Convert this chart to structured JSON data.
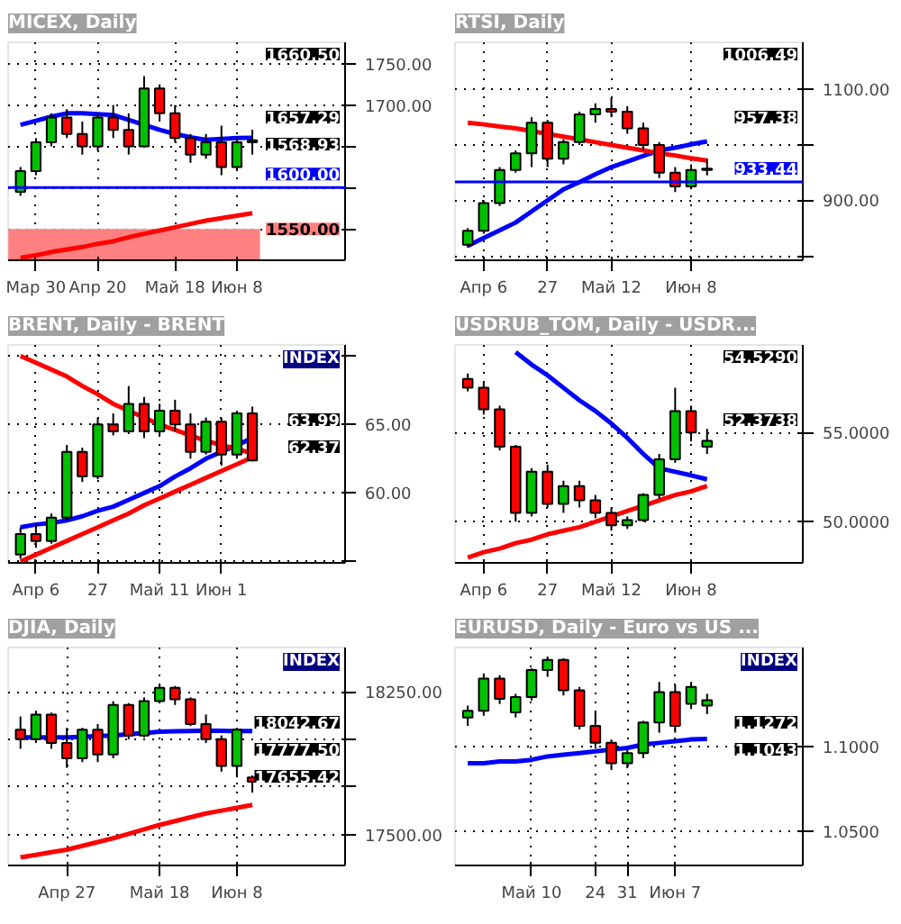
{
  "chart_data": [
    {
      "type": "candlestick",
      "title": "MICEX, Daily",
      "categories": [
        null,
        "Мар 30",
        null,
        null,
        null,
        "Апр 20",
        null,
        null,
        null,
        null,
        "Май 18",
        null,
        null,
        null,
        "Июн 8",
        null
      ],
      "ylim": [
        1512,
        1776
      ],
      "ohlc": [
        [
          1595,
          1625,
          1590,
          1620
        ],
        [
          1620,
          1660,
          1615,
          1655
        ],
        [
          1655,
          1690,
          1650,
          1685
        ],
        [
          1685,
          1695,
          1660,
          1665
        ],
        [
          1665,
          1680,
          1640,
          1650
        ],
        [
          1650,
          1690,
          1645,
          1685
        ],
        [
          1685,
          1700,
          1660,
          1670
        ],
        [
          1670,
          1690,
          1640,
          1650
        ],
        [
          1650,
          1735,
          1650,
          1720
        ],
        [
          1720,
          1725,
          1680,
          1690
        ],
        [
          1690,
          1700,
          1655,
          1660
        ],
        [
          1660,
          1665,
          1630,
          1640
        ],
        [
          1640,
          1665,
          1635,
          1655
        ],
        [
          1655,
          1675,
          1615,
          1625
        ],
        [
          1625,
          1660,
          1620,
          1655
        ],
        [
          1655,
          1670,
          1640,
          1657.29
        ]
      ],
      "series": [
        {
          "type": "line",
          "color": "#0000ff",
          "values": [
            1676,
            1681,
            1686,
            1690,
            1690,
            1689,
            1688,
            1682,
            1676,
            1670,
            1665,
            1661,
            1658,
            1659,
            1660,
            1660.5
          ]
        },
        {
          "type": "line",
          "color": "#ff0000",
          "values": [
            1515,
            1518,
            1522,
            1525,
            1528,
            1532,
            1535,
            1540,
            1544,
            1548,
            1552,
            1556,
            1560,
            1563,
            1566,
            1568.93
          ]
        }
      ],
      "ref_lines": [
        {
          "axis": "y",
          "value": 1600,
          "label": "1600.00",
          "color": "#0000ff"
        }
      ],
      "bands": [
        {
          "axis": "y",
          "from": 1512,
          "to": 1550,
          "label": "1550.00",
          "color": "#ff8080"
        }
      ],
      "annotations": [
        "1660.50",
        "1657.29",
        "1568.93"
      ],
      "yticks": [
        {
          "value": 1550,
          "label": null
        },
        {
          "value": 1600,
          "label": null
        },
        {
          "value": 1650,
          "label": null
        },
        {
          "value": 1700,
          "label": "1700.00"
        },
        {
          "value": 1750,
          "label": "1750.00"
        }
      ],
      "grid": true
    },
    {
      "type": "candlestick",
      "title": "RTSI, Daily",
      "categories": [
        null,
        "Апр 6",
        null,
        null,
        null,
        "27",
        null,
        null,
        null,
        "Май 12",
        null,
        null,
        null,
        null,
        "Июн 8",
        null
      ],
      "ylim": [
        792,
        1185
      ],
      "ohlc": [
        [
          820,
          850,
          815,
          845
        ],
        [
          845,
          900,
          840,
          895
        ],
        [
          895,
          960,
          890,
          955
        ],
        [
          955,
          990,
          950,
          985
        ],
        [
          985,
          1050,
          960,
          1040
        ],
        [
          1040,
          1045,
          960,
          975
        ],
        [
          975,
          1010,
          965,
          1005
        ],
        [
          1005,
          1060,
          1000,
          1055
        ],
        [
          1055,
          1075,
          1040,
          1065
        ],
        [
          1065,
          1085,
          1050,
          1060
        ],
        [
          1060,
          1070,
          1020,
          1030
        ],
        [
          1030,
          1040,
          990,
          1000
        ],
        [
          1000,
          1005,
          940,
          950
        ],
        [
          950,
          960,
          915,
          925
        ],
        [
          925,
          965,
          920,
          955
        ],
        [
          955,
          975,
          945,
          957.38
        ]
      ],
      "series": [
        {
          "type": "line",
          "color": "#0000ff",
          "values": [
            818,
            832,
            846,
            860,
            880,
            900,
            920,
            933,
            947,
            960,
            970,
            980,
            990,
            995,
            1001,
            1006.49
          ]
        },
        {
          "type": "line",
          "color": "#ff0000",
          "values": [
            1040,
            1037,
            1033,
            1030,
            1025,
            1020,
            1015,
            1010,
            1005,
            1000,
            995,
            990,
            985,
            981,
            976,
            972
          ]
        }
      ],
      "ref_lines": [
        {
          "axis": "y",
          "value": 933.44,
          "label": "933.44",
          "color": "#0000ff"
        }
      ],
      "annotations": [
        "1006.49",
        "957.38"
      ],
      "yticks": [
        {
          "value": 800,
          "label": null
        },
        {
          "value": 900,
          "label": "900.00"
        },
        {
          "value": 1000,
          "label": null
        },
        {
          "value": 1100,
          "label": "1100.00"
        }
      ],
      "grid": true
    },
    {
      "type": "candlestick",
      "title": "BRENT, Daily - BRENT",
      "categories": [
        null,
        "Апр 6",
        null,
        null,
        null,
        "27",
        null,
        null,
        null,
        "Май 11",
        null,
        null,
        null,
        "Июн 1",
        null,
        null
      ],
      "ylim": [
        54.9,
        70.8
      ],
      "ohlc": [
        [
          55.5,
          57.5,
          55.2,
          57.0
        ],
        [
          57.0,
          57.8,
          56.0,
          56.5
        ],
        [
          56.5,
          58.5,
          56.3,
          58.2
        ],
        [
          58.2,
          63.5,
          58.0,
          63.0
        ],
        [
          63.0,
          63.3,
          60.8,
          61.2
        ],
        [
          61.2,
          65.5,
          61.0,
          65.0
        ],
        [
          65.0,
          65.8,
          64.2,
          64.5
        ],
        [
          64.5,
          67.8,
          64.3,
          66.5
        ],
        [
          66.5,
          67.0,
          64.0,
          64.5
        ],
        [
          64.5,
          66.5,
          64.2,
          66.0
        ],
        [
          66.0,
          66.8,
          64.5,
          65.0
        ],
        [
          65.0,
          65.8,
          62.5,
          63.0
        ],
        [
          63.0,
          65.5,
          62.8,
          65.2
        ],
        [
          65.2,
          65.5,
          62.0,
          62.8
        ],
        [
          62.8,
          66.0,
          62.5,
          65.8
        ],
        [
          65.8,
          66.3,
          62.3,
          62.37
        ]
      ],
      "series": [
        {
          "type": "line",
          "color": "#0000ff",
          "values": [
            57.5,
            57.7,
            57.8,
            58.0,
            58.3,
            58.7,
            59.0,
            59.5,
            60.0,
            60.5,
            61.2,
            61.8,
            62.5,
            63.0,
            63.5,
            63.99
          ]
        },
        {
          "type": "line",
          "color": "#ff0000",
          "values": [
            70.0,
            69.5,
            69.0,
            68.5,
            67.8,
            67.2,
            66.5,
            66.0,
            65.5,
            65.0,
            64.6,
            64.2,
            63.8,
            63.5,
            63.2,
            62.9
          ]
        },
        {
          "type": "line",
          "color": "#ff0000",
          "values": [
            55.0,
            55.5,
            56.0,
            56.5,
            57.0,
            57.5,
            58.0,
            58.5,
            59.1,
            59.6,
            60.1,
            60.6,
            61.1,
            61.6,
            62.1,
            62.6
          ]
        }
      ],
      "annotations": [
        "INDEX",
        "63.99",
        "62.37"
      ],
      "yticks": [
        {
          "value": 55,
          "label": null
        },
        {
          "value": 60,
          "label": "60.00"
        },
        {
          "value": 65,
          "label": "65.00"
        },
        {
          "value": 70,
          "label": null
        }
      ],
      "grid": true
    },
    {
      "type": "candlestick",
      "title": "USDRUB_TOM, Daily - USDR...",
      "categories": [
        null,
        "Апр 6",
        null,
        null,
        null,
        "27",
        null,
        null,
        null,
        "Май 12",
        null,
        null,
        null,
        null,
        "Июн 8",
        null
      ],
      "ylim": [
        47.7,
        59.9
      ],
      "ohlc": [
        [
          58.0,
          58.3,
          57.3,
          57.5
        ],
        [
          57.5,
          57.8,
          56.0,
          56.3
        ],
        [
          56.3,
          56.5,
          54.0,
          54.2
        ],
        [
          54.2,
          54.3,
          50.0,
          50.5
        ],
        [
          50.5,
          53.0,
          50.3,
          52.8
        ],
        [
          52.8,
          53.2,
          50.8,
          51.0
        ],
        [
          51.0,
          52.3,
          50.5,
          52.0
        ],
        [
          52.0,
          52.3,
          50.8,
          51.2
        ],
        [
          51.2,
          51.5,
          50.2,
          50.5
        ],
        [
          50.5,
          50.8,
          49.5,
          49.8
        ],
        [
          49.8,
          50.3,
          49.6,
          50.1
        ],
        [
          50.1,
          51.6,
          50.0,
          51.5
        ],
        [
          51.5,
          53.8,
          51.3,
          53.5
        ],
        [
          53.5,
          57.5,
          53.3,
          56.2
        ],
        [
          56.2,
          56.5,
          54.5,
          55.0
        ],
        [
          54.2,
          55.2,
          53.8,
          54.529
        ]
      ],
      "series": [
        {
          "type": "line",
          "color": "#0000ff",
          "values": [
            null,
            null,
            null,
            59.5,
            58.8,
            58.2,
            57.5,
            56.8,
            56.2,
            55.5,
            54.7,
            53.8,
            53.0,
            52.8,
            52.6,
            52.3738
          ]
        },
        {
          "type": "line",
          "color": "#ff0000",
          "values": [
            48.0,
            48.3,
            48.5,
            48.8,
            49.0,
            49.3,
            49.5,
            49.7,
            50.0,
            50.3,
            50.6,
            50.9,
            51.2,
            51.5,
            51.7,
            52.0
          ]
        }
      ],
      "annotations": [
        "54.5290",
        "52.3738"
      ],
      "yticks": [
        {
          "value": 50,
          "label": "50.0000"
        },
        {
          "value": 55,
          "label": "55.0000"
        }
      ],
      "grid": true
    },
    {
      "type": "candlestick",
      "title": "DJIA, Daily",
      "categories": [
        null,
        null,
        null,
        "Апр 27",
        null,
        null,
        null,
        null,
        null,
        "Май 18",
        null,
        null,
        null,
        null,
        "Июн 8",
        null
      ],
      "ylim": [
        17337,
        18482
      ],
      "ohlc": [
        [
          18050,
          18120,
          17950,
          18000
        ],
        [
          18000,
          18150,
          17980,
          18130
        ],
        [
          18130,
          18140,
          17950,
          17980
        ],
        [
          17980,
          18060,
          17850,
          17900
        ],
        [
          17900,
          18060,
          17880,
          18050
        ],
        [
          18050,
          18080,
          17880,
          17920
        ],
        [
          17920,
          18200,
          17900,
          18180
        ],
        [
          18180,
          18190,
          18000,
          18020
        ],
        [
          18020,
          18220,
          18010,
          18200
        ],
        [
          18200,
          18290,
          18190,
          18270
        ],
        [
          18270,
          18280,
          18180,
          18210
        ],
        [
          18210,
          18220,
          18070,
          18080
        ],
        [
          18080,
          18130,
          17980,
          18000
        ],
        [
          18000,
          18020,
          17830,
          17860
        ],
        [
          17860,
          18060,
          17800,
          18050
        ],
        [
          17800,
          17810,
          17720,
          17777.5
        ]
      ],
      "series": [
        {
          "type": "line",
          "color": "#0000ff",
          "values": [
            18010,
            18010,
            18010,
            18010,
            18013,
            18017,
            18020,
            18027,
            18033,
            18040,
            18042,
            18043,
            18045,
            18044,
            18043,
            18042.67
          ]
        },
        {
          "type": "line",
          "color": "#ff0000",
          "values": [
            17380,
            17393,
            17407,
            17420,
            17440,
            17460,
            17480,
            17503,
            17527,
            17550,
            17570,
            17590,
            17610,
            17625,
            17640,
            17655.42
          ]
        }
      ],
      "annotations": [
        "INDEX",
        "18042.67",
        "17777.50",
        "17655.42"
      ],
      "yticks": [
        {
          "value": 17500,
          "label": "17500.00"
        },
        {
          "value": 17750,
          "label": null
        },
        {
          "value": 18000,
          "label": null
        },
        {
          "value": 18250,
          "label": "18250.00"
        }
      ],
      "grid": true
    },
    {
      "type": "candlestick",
      "title": "EURUSD, Daily - Euro vs US ...",
      "categories": [
        null,
        null,
        null,
        null,
        "Май 10",
        null,
        null,
        null,
        "24",
        null,
        "31",
        null,
        null,
        "Июн 7",
        null,
        null
      ],
      "ylim": [
        1.0296,
        1.1583
      ],
      "ohlc": [
        [
          1.117,
          1.124,
          1.112,
          1.121
        ],
        [
          1.121,
          1.143,
          1.118,
          1.14
        ],
        [
          1.14,
          1.142,
          1.125,
          1.128
        ],
        [
          1.12,
          1.131,
          1.117,
          1.129
        ],
        [
          1.129,
          1.146,
          1.127,
          1.145
        ],
        [
          1.145,
          1.153,
          1.141,
          1.151
        ],
        [
          1.151,
          1.152,
          1.13,
          1.133
        ],
        [
          1.133,
          1.135,
          1.11,
          1.112
        ],
        [
          1.112,
          1.12,
          1.1,
          1.102
        ],
        [
          1.102,
          1.104,
          1.086,
          1.09
        ],
        [
          1.09,
          1.098,
          1.087,
          1.096
        ],
        [
          1.096,
          1.115,
          1.093,
          1.114
        ],
        [
          1.114,
          1.138,
          1.108,
          1.132
        ],
        [
          1.132,
          1.136,
          1.108,
          1.112
        ],
        [
          1.125,
          1.138,
          1.122,
          1.135
        ],
        [
          1.124,
          1.131,
          1.119,
          1.1272
        ]
      ],
      "series": [
        {
          "type": "line",
          "color": "#0000ff",
          "values": [
            1.09,
            1.09,
            1.091,
            1.091,
            1.092,
            1.094,
            1.095,
            1.096,
            1.097,
            1.098,
            1.099,
            1.101,
            1.102,
            1.103,
            1.104,
            1.1043
          ]
        }
      ],
      "annotations": [
        "INDEX",
        "1.1272",
        "1.1043"
      ],
      "yticks": [
        {
          "value": 1.05,
          "label": "1.0500"
        },
        {
          "value": 1.1,
          "label": "1.1000"
        }
      ],
      "grid": true
    }
  ]
}
